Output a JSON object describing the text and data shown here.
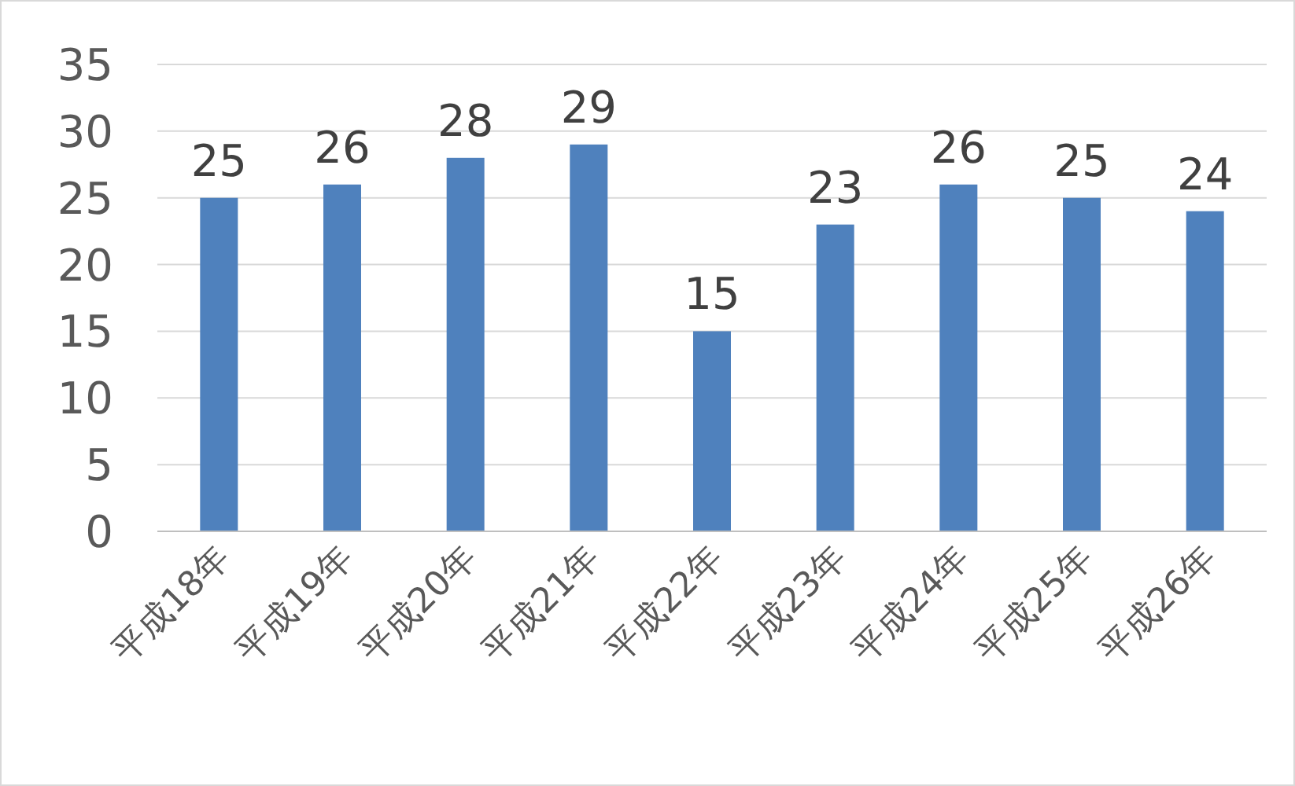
{
  "chart_data": {
    "type": "bar",
    "categories": [
      "平成18年",
      "平成19年",
      "平成20年",
      "平成21年",
      "平成22年",
      "平成23年",
      "平成24年",
      "平成25年",
      "平成26年"
    ],
    "values": [
      25,
      26,
      28,
      29,
      15,
      23,
      26,
      25,
      24
    ],
    "color": "#4f81bd",
    "ylim": [
      0,
      35
    ],
    "yticks": [
      0,
      5,
      10,
      15,
      20,
      25,
      30,
      35
    ],
    "grid": "y",
    "data_labels": true
  }
}
